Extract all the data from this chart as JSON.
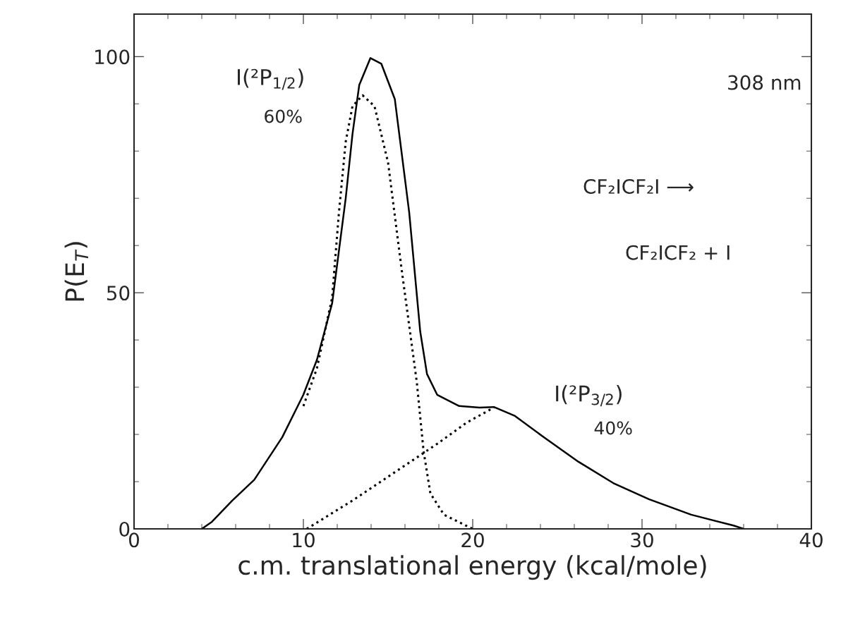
{
  "chart_data": {
    "type": "line",
    "xlabel": "c.m. translational energy (kcal/mole)",
    "ylabel": "P(E$_{T}$)",
    "xlim": [
      0,
      40
    ],
    "xticks": [
      0,
      10,
      20,
      30,
      40
    ],
    "ylim": [
      0,
      109
    ],
    "yticks": [
      0,
      50,
      100
    ],
    "grid": false,
    "legend": false,
    "marker": "none",
    "series": [
      {
        "color": "#000000",
        "line_style": "solid",
        "x": [
          4,
          4.6,
          5.8,
          7.1,
          8.75,
          10,
          10.8,
          11.7,
          12.5,
          12.9,
          13.3,
          13.96,
          14.6,
          15.4,
          16.25,
          16.9,
          17.3,
          17.9,
          19.2,
          20.4,
          21.25,
          22.5,
          24.2,
          26.25,
          28.3,
          30.4,
          32.9,
          35.4,
          36
        ],
        "values": [
          0,
          1.5,
          6,
          10.4,
          19.4,
          28.4,
          35.8,
          47.8,
          70,
          83.6,
          94,
          99.7,
          98.5,
          91,
          67,
          41.8,
          32.8,
          28.4,
          26,
          25.7,
          25.8,
          23.9,
          19.4,
          14.2,
          9.7,
          6.3,
          3,
          0.7,
          0
        ]
      },
      {
        "name": "I(²P$_{1/2}$)",
        "color": "#000000",
        "line_style": "dotted",
        "x": [
          10,
          10.8,
          11.7,
          12.1,
          12.5,
          12.9,
          13.5,
          14.2,
          15,
          15.8,
          16.7,
          17.1,
          17.5,
          18.3,
          19.6,
          20
        ],
        "values": [
          26,
          34,
          49,
          67,
          82,
          89.5,
          91.8,
          89.5,
          77.6,
          55,
          31,
          16.4,
          7.5,
          3,
          0.7,
          0
        ]
      },
      {
        "name": "I(²P$_{3/2}$)",
        "color": "#000000",
        "line_style": "dotted",
        "x": [
          10.2,
          12.9,
          15.4,
          17.9,
          19.6,
          21.25
        ],
        "values": [
          0,
          6,
          12,
          18,
          22.4,
          25.7
        ]
      }
    ],
    "annotations": [
      "60%",
      "40%",
      "308 nm",
      "CF₂ICF₂I ⟶",
      "CF₂ICF₂ + I"
    ]
  }
}
